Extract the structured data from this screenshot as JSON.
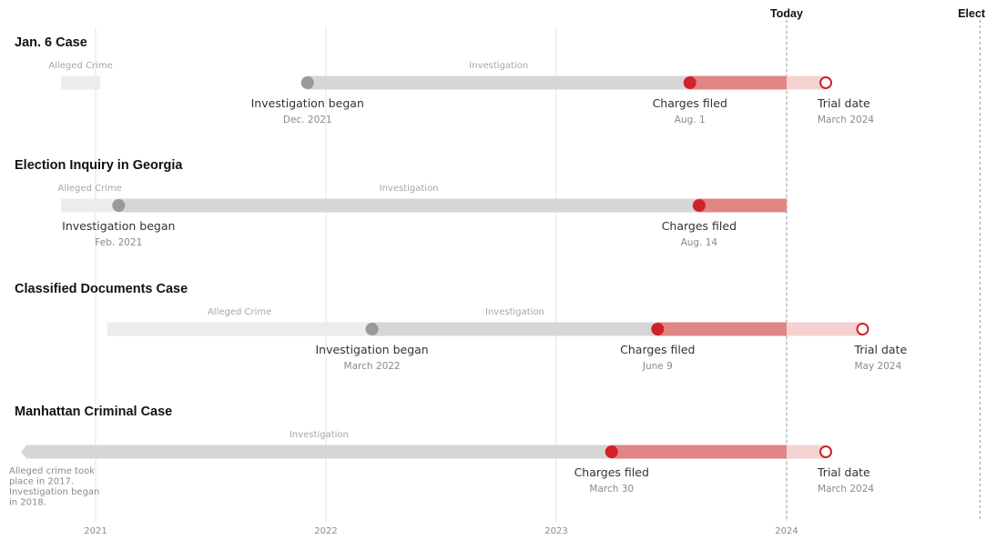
{
  "chart_data": {
    "type": "timeline",
    "x_axis": {
      "ticks": [
        "2021",
        "2022",
        "2023",
        "2024"
      ],
      "range": [
        2021.0,
        2025.0
      ]
    },
    "reference_lines": [
      {
        "label": "Today",
        "x": 2024.0
      },
      {
        "label": "Election",
        "x": 2024.84
      }
    ],
    "colors": {
      "crime": "#ececec",
      "investigation": "#d6d6d6",
      "charged": "#e28585",
      "awaiting_trial": "#f5d2d2",
      "began_dot": "#999999",
      "charges_dot": "#d1212a",
      "gridline": "#e4e4e4"
    },
    "cases": [
      {
        "title": "Jan. 6 Case",
        "crime": {
          "label": "Alleged Crime",
          "start": 2020.85,
          "end": 2021.02
        },
        "investigation": {
          "label": "Investigation",
          "start": 2021.92,
          "end": 2023.58
        },
        "charged": {
          "start": 2023.58,
          "end": 2024.0
        },
        "awaiting": {
          "start": 2024.0,
          "end": 2024.17
        },
        "began": {
          "label": "Investigation began",
          "date": "Dec. 2021",
          "x": 2021.92
        },
        "charges": {
          "label": "Charges filed",
          "date": "Aug. 1",
          "x": 2023.58
        },
        "trial": {
          "label": "Trial date",
          "date": "March 2024",
          "x": 2024.17
        }
      },
      {
        "title": "Election Inquiry in Georgia",
        "crime": {
          "label": "Alleged Crime",
          "start": 2020.85,
          "end": 2021.1
        },
        "investigation": {
          "label": "Investigation",
          "start": 2021.1,
          "end": 2023.62
        },
        "charged": {
          "start": 2023.62,
          "end": 2024.0
        },
        "began": {
          "label": "Investigation began",
          "date": "Feb. 2021",
          "x": 2021.1
        },
        "charges": {
          "label": "Charges filed",
          "date": "Aug. 14",
          "x": 2023.62
        }
      },
      {
        "title": "Classified Documents Case",
        "crime": {
          "label": "Alleged Crime",
          "start": 2021.05,
          "end": 2022.2
        },
        "investigation": {
          "label": "Investigation",
          "start": 2022.2,
          "end": 2023.44
        },
        "charged": {
          "start": 2023.44,
          "end": 2024.0
        },
        "awaiting": {
          "start": 2024.0,
          "end": 2024.33
        },
        "began": {
          "label": "Investigation began",
          "date": "March 2022",
          "x": 2022.2
        },
        "charges": {
          "label": "Charges filed",
          "date": "June 9",
          "x": 2023.44
        },
        "trial": {
          "label": "Trial date",
          "date": "May 2024",
          "x": 2024.33
        }
      },
      {
        "title": "Manhattan Criminal Case",
        "crime": null,
        "investigation": {
          "label": "Investigation",
          "start": 2020.7,
          "end": 2023.24
        },
        "charged": {
          "start": 2023.24,
          "end": 2024.0
        },
        "awaiting": {
          "start": 2024.0,
          "end": 2024.17
        },
        "began": null,
        "charges": {
          "label": "Charges filed",
          "date": "March 30",
          "x": 2023.24
        },
        "trial": {
          "label": "Trial date",
          "date": "March 2024",
          "x": 2024.17
        },
        "note": [
          "Alleged crime took",
          "place in 2017.",
          "Investigation began",
          "in 2018."
        ]
      }
    ]
  }
}
